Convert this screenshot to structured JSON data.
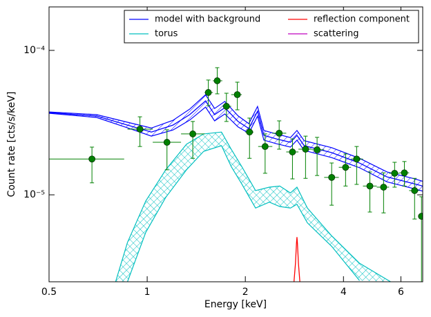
{
  "chart_data": {
    "type": "line",
    "xlabel": "Energy [keV]",
    "ylabel": "Count rate [cts/s/keV]",
    "xscale": "log",
    "yscale": "log",
    "xlim": [
      0.5,
      7.0
    ],
    "ylim": [
      2.5e-06,
      0.0002
    ],
    "xticks": [
      0.5,
      1,
      2,
      4,
      6
    ],
    "yticks": [
      {
        "value": 1e-05,
        "label": "10⁻⁵"
      },
      {
        "value": 0.0001,
        "label": "10⁻⁴"
      }
    ],
    "legend": "upper right",
    "legend_columns": 2,
    "series": [
      {
        "name": "model with background",
        "color": "#0000ff",
        "x": [
          0.5,
          0.7,
          0.87,
          1.03,
          1.2,
          1.35,
          1.51,
          1.61,
          1.73,
          1.9,
          2.05,
          2.18,
          2.28,
          2.49,
          2.75,
          2.88,
          3.03,
          3.68,
          4.48,
          5.44,
          6.61,
          7.0
        ],
        "values": [
          3.71e-05,
          3.51e-05,
          3.04e-05,
          2.72e-05,
          3.04e-05,
          3.59e-05,
          4.47e-05,
          3.59e-05,
          4.01e-05,
          3.22e-05,
          2.88e-05,
          3.79e-05,
          2.58e-05,
          2.44e-05,
          2.31e-05,
          2.58e-05,
          2.19e-05,
          1.96e-05,
          1.66e-05,
          1.33e-05,
          1.19e-05,
          1.15e-05
        ],
        "upper": [
          3.75e-05,
          3.59e-05,
          3.18e-05,
          2.9e-05,
          3.28e-05,
          3.92e-05,
          4.93e-05,
          3.96e-05,
          4.43e-05,
          3.52e-05,
          3.11e-05,
          4.09e-05,
          2.79e-05,
          2.64e-05,
          2.49e-05,
          2.79e-05,
          2.37e-05,
          2.12e-05,
          1.79e-05,
          1.44e-05,
          1.29e-05,
          1.24e-05
        ],
        "lower": [
          3.67e-05,
          3.43e-05,
          2.91e-05,
          2.55e-05,
          2.81e-05,
          3.29e-05,
          4.05e-05,
          3.25e-05,
          3.63e-05,
          2.95e-05,
          2.67e-05,
          3.51e-05,
          2.39e-05,
          2.26e-05,
          2.14e-05,
          2.39e-05,
          2.03e-05,
          1.81e-05,
          1.54e-05,
          1.23e-05,
          1.1e-05,
          1.06e-05
        ]
      },
      {
        "name": "torus",
        "color": "#00bfbf",
        "x": [
          0.8,
          0.87,
          0.99,
          1.14,
          1.32,
          1.49,
          1.69,
          1.81,
          1.95,
          2.15,
          2.37,
          2.55,
          2.75,
          2.88,
          3.1,
          3.68,
          4.48,
          5.58
        ],
        "upper": [
          2.5e-06,
          4.68e-06,
          9.06e-06,
          1.49e-05,
          2.24e-05,
          2.64e-05,
          2.72e-05,
          2.07e-05,
          1.57e-05,
          1.07e-05,
          1.13e-05,
          1.15e-05,
          1.03e-05,
          1.13e-05,
          8.1e-06,
          5.2e-06,
          3.36e-06,
          2.5e-06
        ],
        "lower": [
          null,
          2.5e-06,
          5.5e-06,
          9.6e-06,
          1.49e-05,
          2e-05,
          2.19e-05,
          1.57e-05,
          1.19e-05,
          8.1e-06,
          8.9e-06,
          8.3e-06,
          8.1e-06,
          8.6e-06,
          6.4e-06,
          4.4e-06,
          2.55e-06,
          null
        ]
      },
      {
        "name": "reflection component",
        "color": "#ff0000",
        "x": [
          2.82,
          2.85,
          2.87,
          2.88,
          2.89,
          2.91,
          2.94
        ],
        "values": [
          2.5e-06,
          3.36e-06,
          4.6e-06,
          5.1e-06,
          4.6e-06,
          3.36e-06,
          2.5e-06
        ]
      },
      {
        "name": "scattering",
        "color": "#bf00bf",
        "x": [],
        "values": []
      }
    ],
    "data_points": {
      "color": "#008000",
      "x": [
        0.677,
        0.95,
        1.15,
        1.38,
        1.54,
        1.64,
        1.75,
        1.89,
        2.06,
        2.3,
        2.54,
        2.79,
        3.06,
        3.32,
        3.68,
        4.06,
        4.39,
        4.82,
        5.31,
        5.74,
        6.15,
        6.61,
        6.94
      ],
      "x_low": [
        0.5,
        0.87,
        1.04,
        1.27,
        1.5,
        1.59,
        1.7,
        1.81,
        2.0,
        2.19,
        2.42,
        2.67,
        2.91,
        3.2,
        3.49,
        3.87,
        4.22,
        4.59,
        5.06,
        5.52,
        5.94,
        6.36,
        6.84
      ],
      "x_high": [
        0.85,
        1.04,
        1.27,
        1.5,
        1.59,
        1.7,
        1.81,
        1.95,
        2.12,
        2.42,
        2.67,
        2.91,
        3.2,
        3.49,
        3.87,
        4.22,
        4.59,
        5.06,
        5.52,
        5.94,
        6.36,
        6.84,
        7.0
      ],
      "values": [
        1.77e-05,
        2.85e-05,
        2.31e-05,
        2.64e-05,
        5.11e-05,
        6.16e-05,
        4.1e-05,
        4.94e-05,
        2.72e-05,
        2.16e-05,
        2.67e-05,
        1.98e-05,
        2.07e-05,
        2.05e-05,
        1.32e-05,
        1.55e-05,
        1.77e-05,
        1.15e-05,
        1.13e-05,
        1.41e-05,
        1.42e-05,
        1.07e-05,
        7.1e-06
      ],
      "y_low": [
        1.21e-05,
        2.16e-05,
        1.49e-05,
        1.79e-05,
        4.14e-05,
        5e-05,
        3.22e-05,
        3.88e-05,
        1.79e-05,
        1.41e-05,
        2.07e-05,
        1.29e-05,
        1.3e-05,
        1.36e-05,
        8.48e-06,
        1.15e-05,
        1.18e-05,
        7.6e-06,
        7.5e-06,
        1.13e-05,
        1.15e-05,
        6.8e-06,
        2.5e-06
      ],
      "y_high": [
        2.14e-05,
        3.47e-05,
        2.82e-05,
        3.22e-05,
        6.23e-05,
        7.59e-05,
        5.05e-05,
        6.02e-05,
        3.4e-05,
        2.64e-05,
        3.25e-05,
        2.44e-05,
        2.55e-05,
        2.5e-05,
        1.66e-05,
        1.92e-05,
        2.16e-05,
        1.44e-05,
        1.42e-05,
        1.68e-05,
        1.7e-05,
        1.3e-05,
        9.7e-06
      ]
    }
  }
}
